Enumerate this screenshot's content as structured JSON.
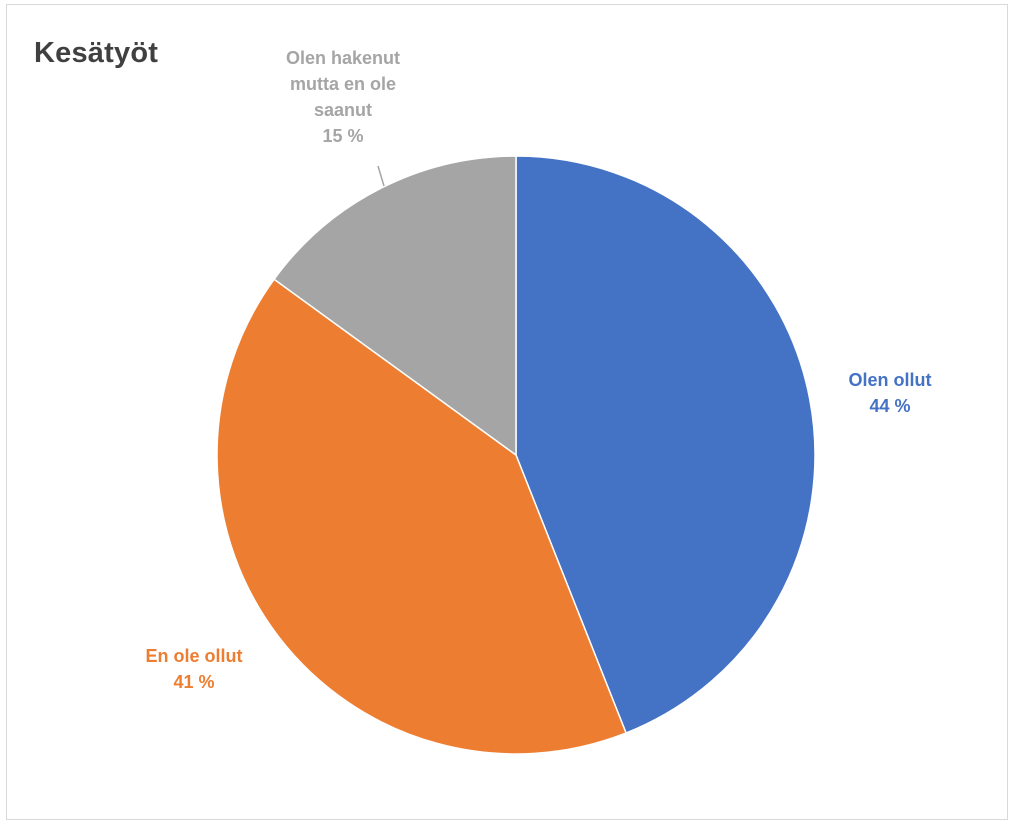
{
  "chart_data": {
    "type": "pie",
    "title": "Kesätyöt",
    "slices": [
      {
        "label": "Olen ollut",
        "value": 44,
        "value_label": "44 %",
        "color": "#4472c4"
      },
      {
        "label": "En ole ollut",
        "value": 41,
        "value_label": "41 %",
        "color": "#ed7d31"
      },
      {
        "label": "Olen hakenut mutta en ole saanut",
        "value": 15,
        "value_label": "15 %",
        "color": "#a5a5a5"
      }
    ],
    "legend": "none",
    "start_angle_deg": 0,
    "direction": "clockwise"
  }
}
